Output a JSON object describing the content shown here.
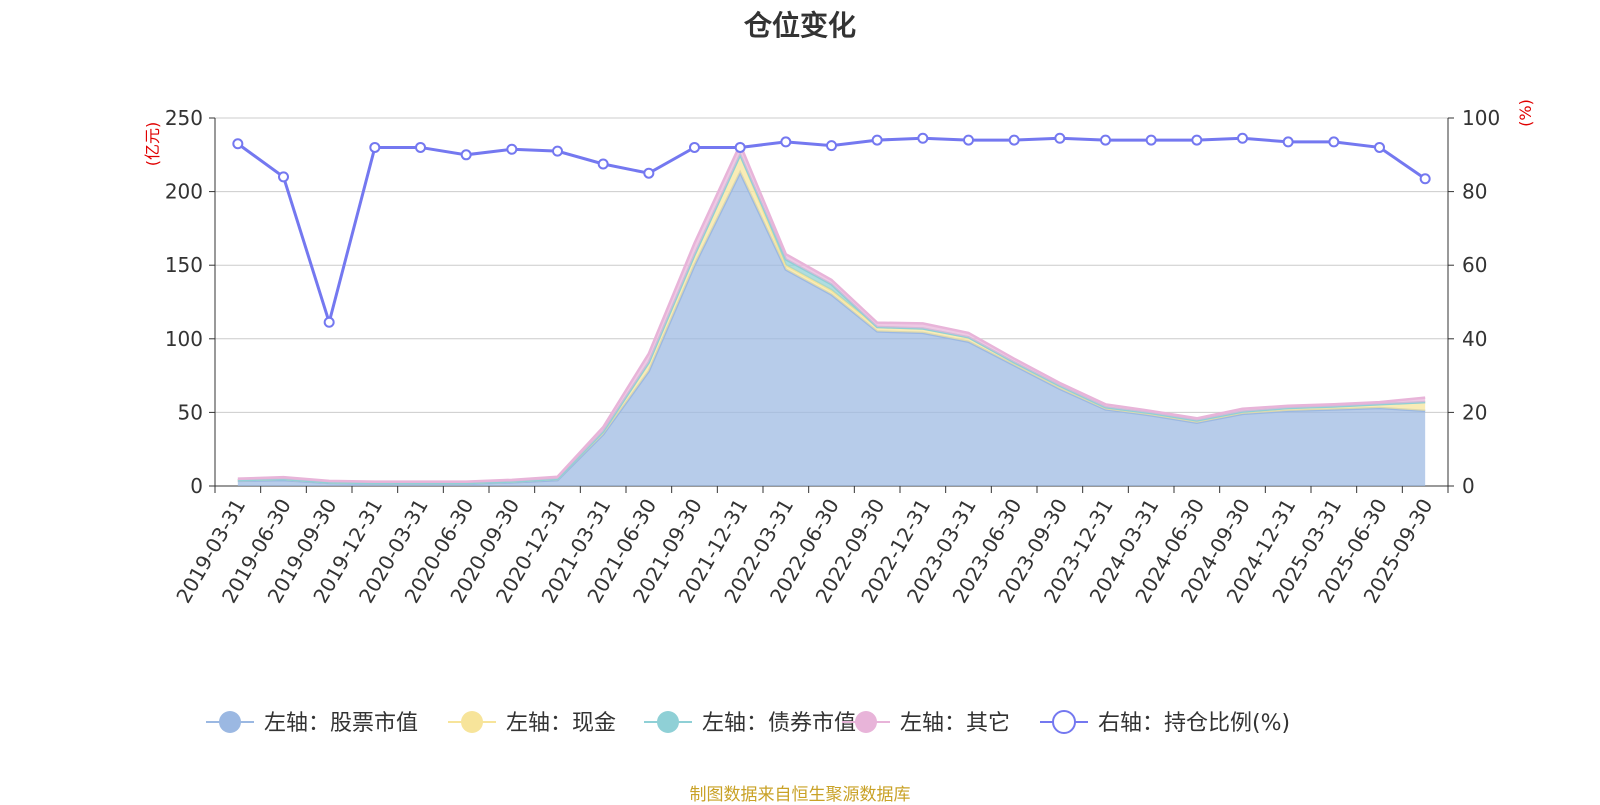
{
  "title": "仓位变化",
  "source": "制图数据来自恒生聚源数据库",
  "chart_data": {
    "type": "area",
    "x": [
      "2019-03-31",
      "2019-06-30",
      "2019-09-30",
      "2019-12-31",
      "2020-03-31",
      "2020-06-30",
      "2020-09-30",
      "2020-12-31",
      "2021-03-31",
      "2021-06-30",
      "2021-09-30",
      "2021-12-31",
      "2022-03-31",
      "2022-06-30",
      "2022-09-30",
      "2022-12-31",
      "2023-03-31",
      "2023-06-30",
      "2023-09-30",
      "2023-12-31",
      "2024-03-31",
      "2024-06-30",
      "2024-09-30",
      "2024-12-31",
      "2025-03-31",
      "2025-06-30",
      "2025-09-30"
    ],
    "left_axis": {
      "unit": "(亿元)",
      "ylim": [
        0,
        250
      ],
      "ticks": [
        0,
        50,
        100,
        150,
        200,
        250
      ]
    },
    "right_axis": {
      "unit": "(%)",
      "ylim": [
        0,
        100
      ],
      "ticks": [
        0,
        20,
        40,
        60,
        80,
        100
      ]
    },
    "grid": true,
    "legend_position": "bottom",
    "series": [
      {
        "name": "左轴：股票市值",
        "axis": "left",
        "kind": "stacked-area",
        "color": "#9bb8e2",
        "values": [
          3.5,
          4,
          2,
          1.5,
          1.5,
          1.5,
          2.5,
          4,
          35,
          78,
          150,
          213,
          147,
          130,
          105,
          104,
          98,
          82,
          66,
          52,
          48,
          43,
          49,
          51,
          52,
          53,
          51
        ]
      },
      {
        "name": "左轴：现金",
        "axis": "left",
        "kind": "stacked-area",
        "color": "#f7e49a",
        "values": [
          0.5,
          0.7,
          0.5,
          0.5,
          0.5,
          0.5,
          0.5,
          0.8,
          2,
          6,
          7,
          12,
          3,
          3,
          3,
          3,
          3,
          2,
          2,
          1.5,
          1.5,
          1.5,
          1.5,
          2,
          2,
          2.5,
          6
        ]
      },
      {
        "name": "左轴：债券市值",
        "axis": "left",
        "kind": "stacked-area",
        "color": "#8fd0d6",
        "values": [
          0,
          0,
          0,
          0,
          0,
          0,
          0,
          0,
          0,
          0,
          0,
          0,
          4,
          4,
          0,
          0,
          0,
          0,
          0,
          0,
          0,
          0,
          0,
          0,
          0,
          0,
          0
        ]
      },
      {
        "name": "左轴：其它",
        "axis": "left",
        "kind": "stacked-area",
        "color": "#e8b4d9",
        "values": [
          1,
          1.3,
          1,
          1,
          1,
          1,
          1.2,
          1.5,
          3,
          6,
          8,
          7,
          3.5,
          3,
          3,
          3.5,
          3,
          2.5,
          2,
          2,
          1.5,
          1.5,
          2,
          1.5,
          1.5,
          1.5,
          3
        ]
      },
      {
        "name": "右轴：持仓比例(%)",
        "axis": "right",
        "kind": "line",
        "color": "#7478f0",
        "values": [
          93,
          84,
          44.5,
          92,
          92,
          90,
          91.5,
          91,
          87.5,
          85,
          92,
          92,
          93.5,
          92.5,
          94,
          94.5,
          94,
          94,
          94.5,
          94,
          94,
          94,
          94.5,
          93.5,
          93.5,
          92,
          83.5
        ]
      }
    ]
  }
}
